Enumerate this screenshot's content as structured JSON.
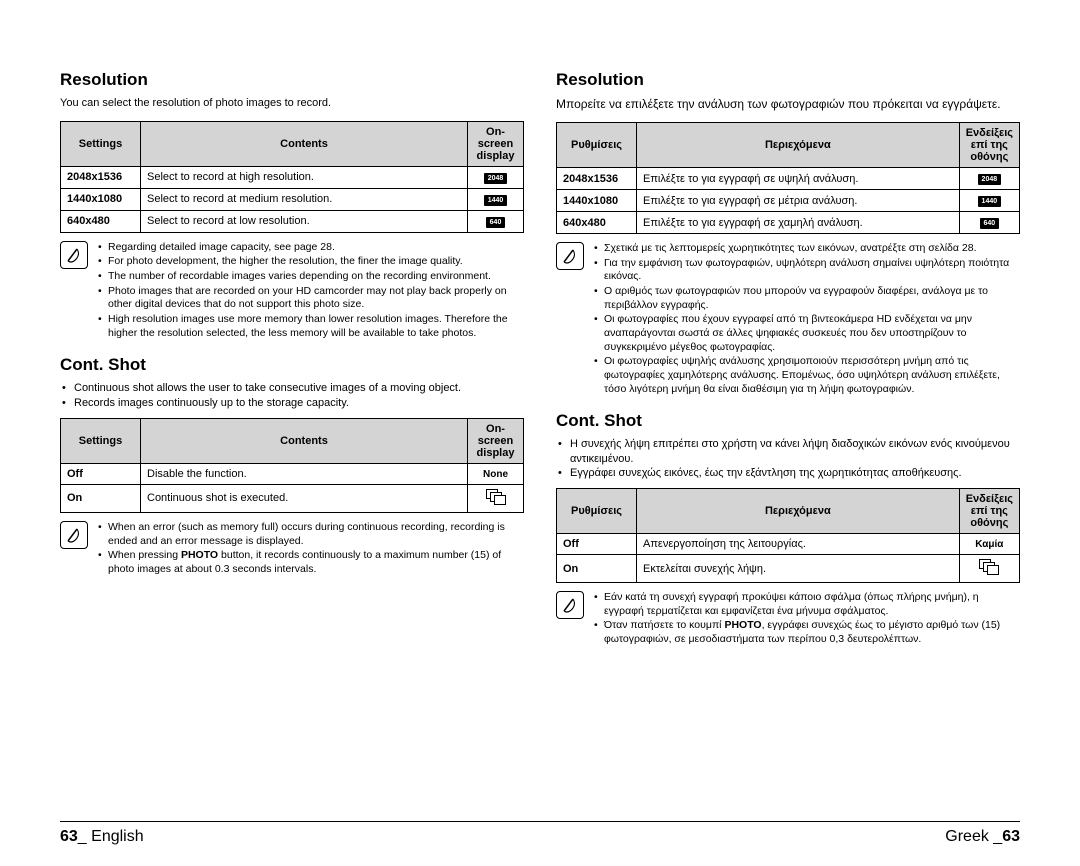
{
  "left": {
    "resolution": {
      "heading": "Resolution",
      "intro": "You can select the resolution of photo images to record.",
      "headers": {
        "settings": "Settings",
        "contents": "Contents",
        "osd": "On-screen display"
      },
      "rows": [
        {
          "setting": "2048x1536",
          "content": "Select to record at high resolution.",
          "osd": "2048"
        },
        {
          "setting": "1440x1080",
          "content": "Select to record at medium resolution.",
          "osd": "1440"
        },
        {
          "setting": "640x480",
          "content": "Select to record at low resolution.",
          "osd": "640"
        }
      ],
      "notes": [
        "Regarding detailed image capacity, see page 28.",
        "For photo development, the higher the resolution, the finer the image quality.",
        "The number of recordable images varies depending on the recording environment.",
        "Photo images that are recorded on your HD camcorder may not play back properly on other digital devices that do not support this photo size.",
        "High resolution images use more memory than lower resolution images. Therefore the higher the resolution selected, the less memory will be available to take photos."
      ]
    },
    "contshot": {
      "heading": "Cont. Shot",
      "intro": [
        "Continuous shot allows the user to take consecutive images of a moving object.",
        "Records images continuously up to the storage capacity."
      ],
      "headers": {
        "settings": "Settings",
        "contents": "Contents",
        "osd": "On-screen display"
      },
      "rows": [
        {
          "setting": "Off",
          "content": "Disable the function.",
          "osd_text": "None"
        },
        {
          "setting": "On",
          "content": "Continuous shot is executed.",
          "osd_icon": true
        }
      ],
      "notes": [
        "When an error (such as memory full) occurs during continuous recording, recording is ended and an error message is displayed.",
        "When pressing PHOTO button, it records continuously to a maximum number (15) of photo images at about 0.3 seconds intervals."
      ]
    },
    "footer": {
      "num": "63",
      "sep": "_ ",
      "lang": "English"
    }
  },
  "right": {
    "resolution": {
      "heading": "Resolution",
      "intro": "Μπορείτε να επιλέξετε την ανάλυση των φωτογραφιών που πρόκειται να εγγράψετε.",
      "headers": {
        "settings": "Ρυθμίσεις",
        "contents": "Περιεχόμενα",
        "osd": "Ενδείξεις επί της οθόνης"
      },
      "rows": [
        {
          "setting": "2048x1536",
          "content": "Επιλέξτε το για εγγραφή σε υψηλή ανάλυση.",
          "osd": "2048"
        },
        {
          "setting": "1440x1080",
          "content": "Επιλέξτε το για εγγραφή σε μέτρια ανάλυση.",
          "osd": "1440"
        },
        {
          "setting": "640x480",
          "content": "Επιλέξτε το για εγγραφή σε χαμηλή ανάλυση.",
          "osd": "640"
        }
      ],
      "notes": [
        "Σχετικά με τις λεπτομερείς χωρητικότητες των εικόνων, ανατρέξτε στη σελίδα 28.",
        "Για την εμφάνιση των φωτογραφιών, υψηλότερη ανάλυση σημαίνει υψηλότερη ποιότητα εικόνας.",
        "Ο αριθμός των φωτογραφιών που μπορούν να εγγραφούν διαφέρει, ανάλογα με το περιβάλλον εγγραφής.",
        "Οι φωτογραφίες που έχουν εγγραφεί από τη βιντεοκάμερα HD ενδέχεται να μην αναπαράγονται σωστά σε άλλες ψηφιακές συσκευές που δεν υποστηρίζουν το συγκεκριμένο μέγεθος φωτογραφίας.",
        "Οι φωτογραφίες υψηλής ανάλυσης χρησιμοποιούν περισσότερη μνήμη από τις φωτογραφίες χαμηλότερης ανάλυσης. Επομένως, όσο υψηλότερη ανάλυση επιλέξετε, τόσο λιγότερη μνήμη θα είναι διαθέσιμη για τη λήψη φωτογραφιών."
      ]
    },
    "contshot": {
      "heading": "Cont. Shot",
      "intro": [
        "Η συνεχής λήψη επιτρέπει στο χρήστη να κάνει λήψη διαδοχικών εικόνων ενός κινούμενου αντικειμένου.",
        "Εγγράφει συνεχώς εικόνες, έως την εξάντληση της χωρητικότητας αποθήκευσης."
      ],
      "headers": {
        "settings": "Ρυθμίσεις",
        "contents": "Περιεχόμενα",
        "osd": "Ενδείξεις επί της οθόνης"
      },
      "rows": [
        {
          "setting": "Off",
          "content": "Απενεργοποίηση της λειτουργίας.",
          "osd_text": "Καμία"
        },
        {
          "setting": "On",
          "content": "Εκτελείται συνεχής λήψη.",
          "osd_icon": true
        }
      ],
      "notes": [
        "Εάν κατά τη συνεχή εγγραφή προκύψει κάποιο σφάλμα (όπως πλήρης μνήμη), η εγγραφή τερματίζεται και εμφανίζεται ένα μήνυμα σφάλματος.",
        "Όταν πατήσετε το κουμπί PHOTO, εγγράφει συνεχώς έως το μέγιστο αριθμό των (15) φωτογραφιών, σε μεσοδιαστήματα των περίπου 0,3 δευτερολέπτων."
      ]
    },
    "footer": {
      "lang": "Greek ",
      "sep": "_",
      "num": "63"
    }
  }
}
